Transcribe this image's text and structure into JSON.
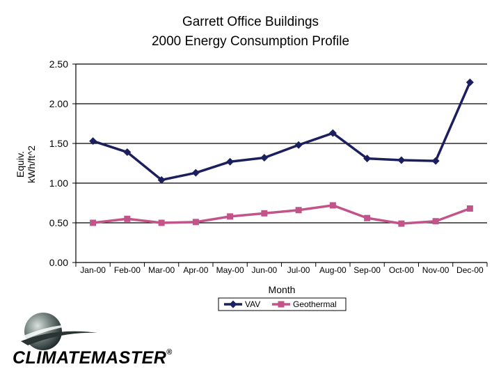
{
  "chart_data": {
    "type": "line",
    "title_line1": "Garrett Office Buildings",
    "title_line2": "2000 Energy Consumption Profile",
    "xlabel": "Month",
    "ylabel_line1": "Equiv.",
    "ylabel_line2": "kWh/ft^2",
    "categories": [
      "Jan-00",
      "Feb-00",
      "Mar-00",
      "Apr-00",
      "May-00",
      "Jun-00",
      "Jul-00",
      "Aug-00",
      "Sep-00",
      "Oct-00",
      "Nov-00",
      "Dec-00"
    ],
    "ylim": [
      0,
      2.5
    ],
    "yticks": [
      "0.00",
      "0.50",
      "1.00",
      "1.50",
      "2.00",
      "2.50"
    ],
    "grid": true,
    "legend_position": "bottom-center",
    "series": [
      {
        "name": "VAV",
        "color": "#1c1f5e",
        "marker": "diamond",
        "values": [
          1.53,
          1.39,
          1.04,
          1.13,
          1.27,
          1.32,
          1.48,
          1.63,
          1.31,
          1.29,
          1.28,
          2.27
        ]
      },
      {
        "name": "Geothermal",
        "color": "#c2548a",
        "marker": "square",
        "values": [
          0.5,
          0.55,
          0.5,
          0.51,
          0.58,
          0.62,
          0.66,
          0.72,
          0.56,
          0.49,
          0.52,
          0.68
        ]
      }
    ]
  },
  "logo": {
    "text": "CLIMATEMASTER",
    "registered": "®"
  }
}
